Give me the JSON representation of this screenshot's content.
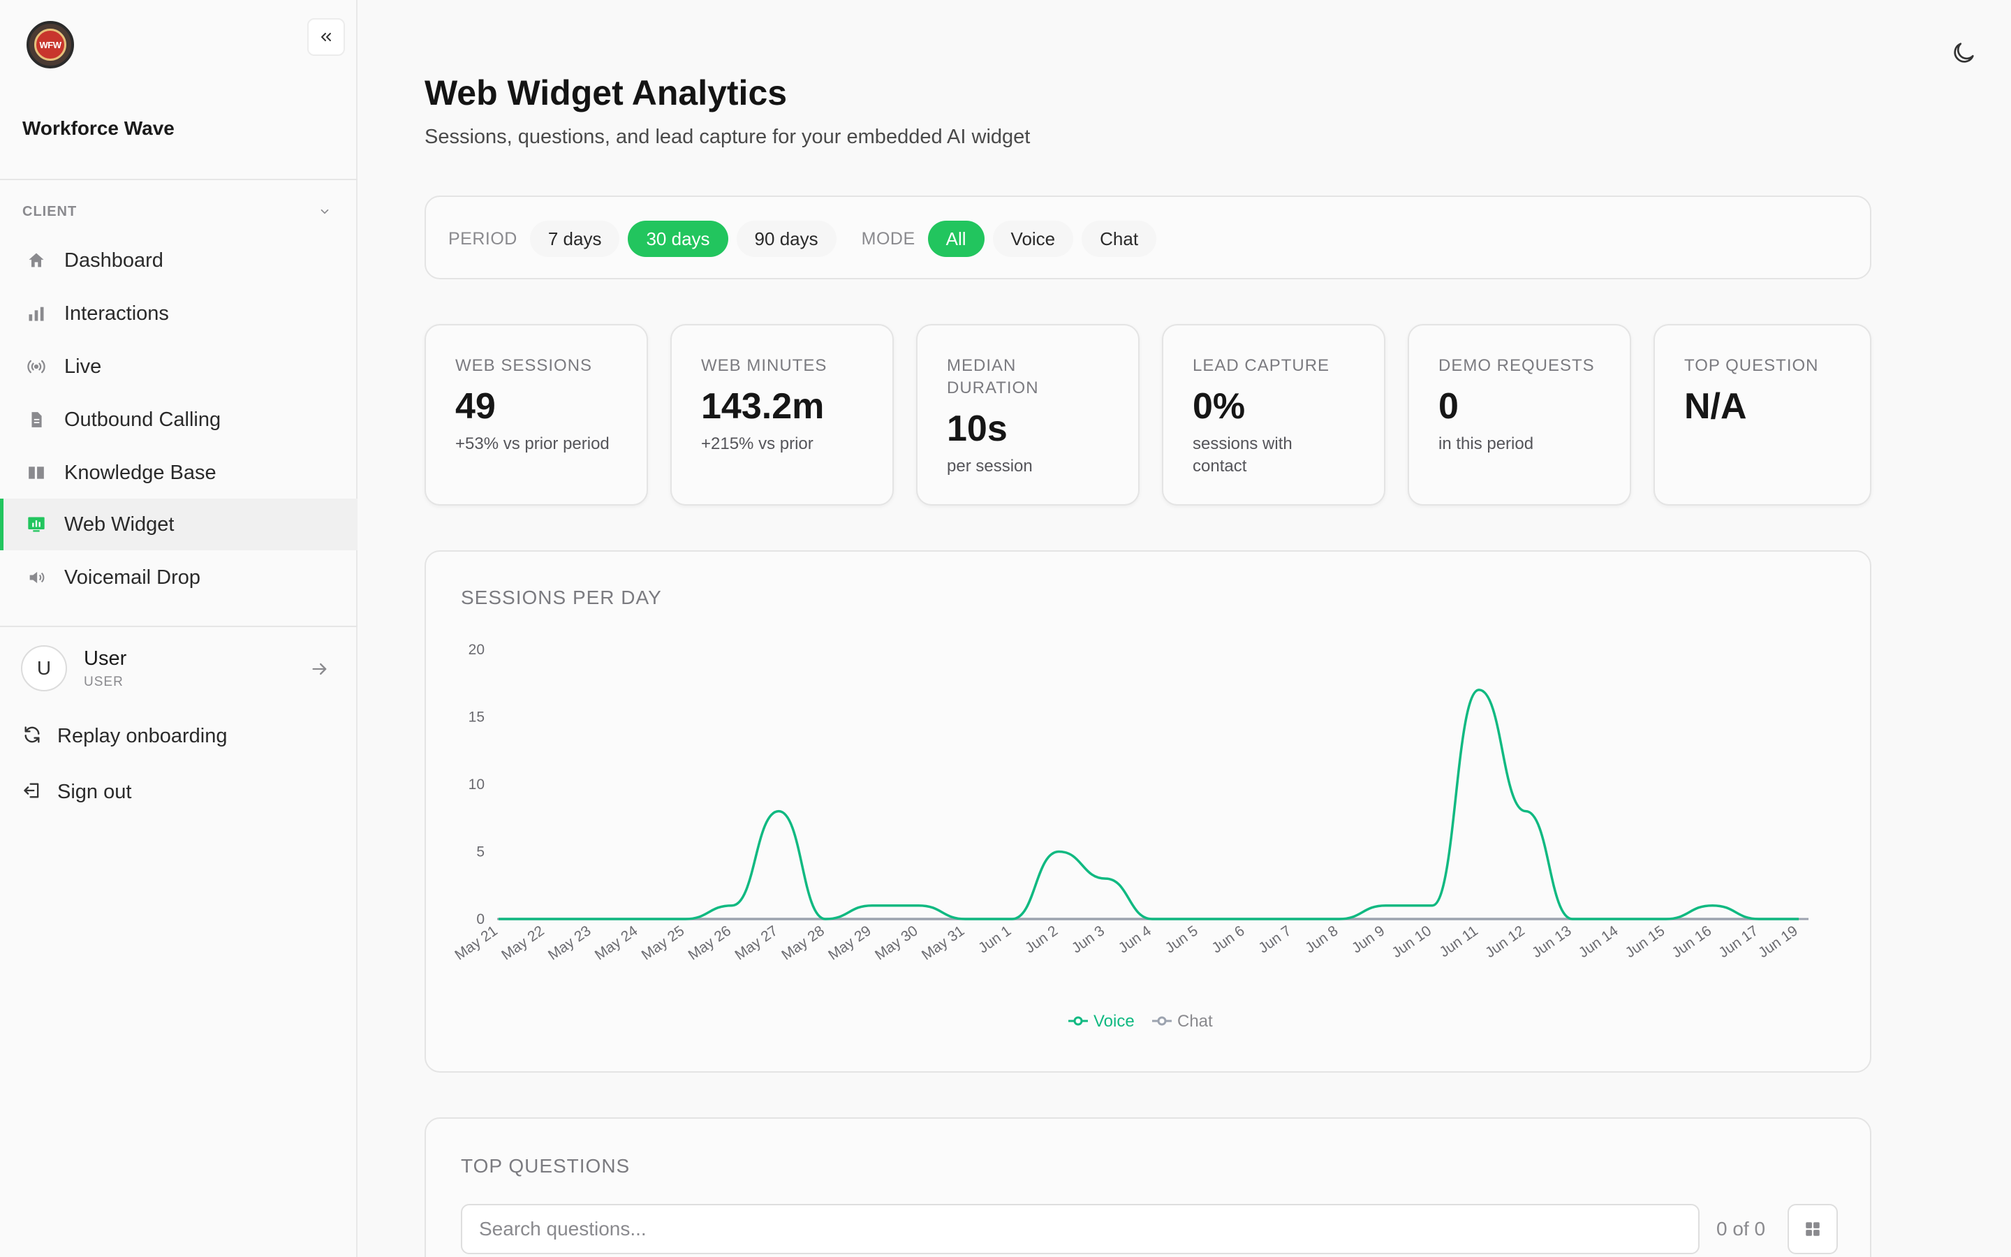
{
  "sidebar": {
    "logo_text": "WFW",
    "org_name": "Workforce Wave",
    "section_label": "CLIENT",
    "items": [
      {
        "label": "Dashboard",
        "icon": "home-icon"
      },
      {
        "label": "Interactions",
        "icon": "bar-chart-icon"
      },
      {
        "label": "Live",
        "icon": "broadcast-icon"
      },
      {
        "label": "Outbound Calling",
        "icon": "document-icon"
      },
      {
        "label": "Knowledge Base",
        "icon": "book-icon"
      },
      {
        "label": "Web Widget",
        "icon": "widget-icon",
        "active": true
      },
      {
        "label": "Voicemail Drop",
        "icon": "speaker-icon"
      }
    ],
    "user": {
      "initial": "U",
      "name": "User",
      "role": "USER"
    },
    "replay_label": "Replay onboarding",
    "signout_label": "Sign out"
  },
  "header": {
    "title": "Web Widget Analytics",
    "subtitle": "Sessions, questions, and lead capture for your embedded AI widget"
  },
  "filters": {
    "period_label": "PERIOD",
    "periods": [
      "7 days",
      "30 days",
      "90 days"
    ],
    "selected_period": "30 days",
    "mode_label": "MODE",
    "modes": [
      "All",
      "Voice",
      "Chat"
    ],
    "selected_mode": "All"
  },
  "stats": [
    {
      "title": "WEB SESSIONS",
      "value": "49",
      "sub": "+53% vs prior period"
    },
    {
      "title": "WEB MINUTES",
      "value": "143.2m",
      "sub": "+215% vs prior"
    },
    {
      "title": "MEDIAN DURATION",
      "value": "10s",
      "sub": "per session"
    },
    {
      "title": "LEAD CAPTURE",
      "value": "0%",
      "sub": "sessions with contact"
    },
    {
      "title": "DEMO REQUESTS",
      "value": "0",
      "sub": "in this period"
    },
    {
      "title": "TOP QUESTION",
      "value": "N/A",
      "sub": ""
    }
  ],
  "chart_title": "SESSIONS PER DAY",
  "chart_data": {
    "type": "line",
    "title": "SESSIONS PER DAY",
    "x": [
      "May 21",
      "May 22",
      "May 23",
      "May 24",
      "May 25",
      "May 26",
      "May 27",
      "May 28",
      "May 29",
      "May 30",
      "May 31",
      "Jun 1",
      "Jun 2",
      "Jun 3",
      "Jun 4",
      "Jun 5",
      "Jun 6",
      "Jun 7",
      "Jun 8",
      "Jun 9",
      "Jun 10",
      "Jun 11",
      "Jun 12",
      "Jun 13",
      "Jun 14",
      "Jun 15",
      "Jun 16",
      "Jun 17",
      "Jun 19"
    ],
    "yticks": [
      0,
      5,
      10,
      15,
      20
    ],
    "ylim": [
      0,
      20
    ],
    "series": [
      {
        "name": "Voice",
        "color": "#10b981",
        "values": [
          0,
          0,
          0,
          0,
          0,
          1,
          8,
          0,
          1,
          1,
          0,
          0,
          5,
          3,
          0,
          0,
          0,
          0,
          0,
          1,
          1,
          17,
          8,
          0,
          0,
          0,
          1,
          0,
          0
        ]
      },
      {
        "name": "Chat",
        "color": "#9ca3af",
        "values": [
          0,
          0,
          0,
          0,
          0,
          0,
          0,
          0,
          0,
          0,
          0,
          0,
          0,
          0,
          0,
          0,
          0,
          0,
          0,
          0,
          0,
          0,
          0,
          0,
          0,
          0,
          0,
          0,
          0
        ]
      }
    ],
    "legend": "bottom-center"
  },
  "questions": {
    "title": "TOP QUESTIONS",
    "search_placeholder": "Search questions...",
    "count": "0 of 0"
  }
}
